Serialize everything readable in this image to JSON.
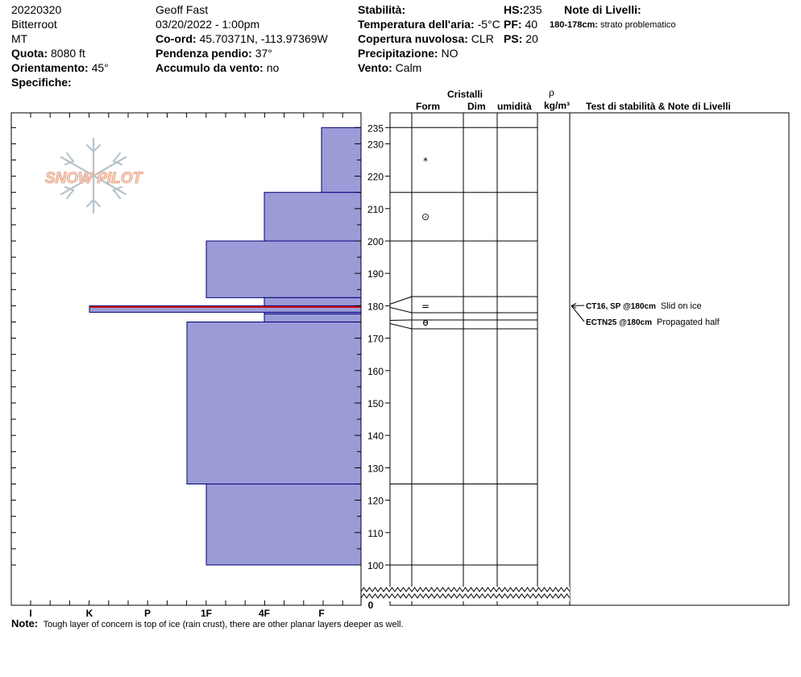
{
  "header": {
    "date": "20220320",
    "range": "Bitterroot",
    "state": "MT",
    "elevation_label": "Quota:",
    "elevation_value": "8080 ft",
    "aspect_label": "Orientamento:",
    "aspect_value": "45°",
    "specifics_label": "Specifiche:",
    "observer": "Geoff Fast",
    "datetime": "03/20/2022 - 1:00pm",
    "coords_label": "Co-ord:",
    "coords_value": "45.70371N, -113.97369W",
    "slope_label": "Pendenza pendio:",
    "slope_value": "37°",
    "wind_loading_label": "Accumulo da vento:",
    "wind_loading_value": "no",
    "stability_label": "Stabilità:",
    "air_temp_label": "Temperatura dell'aria:",
    "air_temp_value": "-5°C",
    "cloud_label": "Copertura nuvolosa:",
    "cloud_value": "CLR",
    "precip_label": "Precipitazione:",
    "precip_value": "NO",
    "wind_label": "Vento:",
    "wind_value": "Calm",
    "hs_label": "HS:",
    "hs_value": "235",
    "pf_label": "PF:",
    "pf_value": "40",
    "ps_label": "PS:",
    "ps_value": "20",
    "layer_notes_label": "Note di Livelli:",
    "layer_note_range": "180-178cm:",
    "layer_note_text": "strato problematico"
  },
  "columns": {
    "crystals": "Cristalli",
    "form": "Form",
    "dim": "Dim",
    "moisture": "umidità",
    "rho": "ρ",
    "density_unit": "kg/m³",
    "tests": "Test di stabilità & Note di Livelli"
  },
  "note": {
    "label": "Note:",
    "text": "Tough layer of concern is top of ice (rain crust), there are other planar layers deeper as well."
  },
  "logo_text": "SNOW PILOT",
  "colors": {
    "layer_fill": "#9b9bd8",
    "layer_edge": "#00007a",
    "crust_line": "#cc0000",
    "grid": "#000000"
  },
  "chart_data": {
    "type": "snow-profile",
    "hand_hardness_scale": [
      "I",
      "K",
      "P",
      "1F",
      "4F",
      "F"
    ],
    "height_ticks": [
      235,
      230,
      220,
      210,
      200,
      190,
      180,
      170,
      160,
      150,
      140,
      130,
      120,
      110,
      100
    ],
    "height_break": [
      0,
      100
    ],
    "height_range": [
      100,
      235
    ],
    "layers": [
      {
        "top": 235,
        "bottom": 215,
        "hardness": "F",
        "form_symbol": "*"
      },
      {
        "top": 215,
        "bottom": 200,
        "hardness": "4F",
        "form_symbol": "⊙"
      },
      {
        "top": 200,
        "bottom": 182.5,
        "hardness": "1F",
        "form_symbol": ""
      },
      {
        "top": 182.5,
        "bottom": 177.5,
        "hardness": "4F",
        "form_symbol": "="
      },
      {
        "top": 180,
        "bottom": 178,
        "hardness": "K",
        "form_symbol": "",
        "note": "ice crust"
      },
      {
        "top": 177.5,
        "bottom": 172.5,
        "hardness": "4F",
        "form_symbol": "ɵ"
      },
      {
        "top": 175,
        "bottom": 125,
        "hardness": "1F-",
        "form_symbol": ""
      },
      {
        "top": 125,
        "bottom": 100,
        "hardness": "1F",
        "form_symbol": ""
      }
    ],
    "stability_tests": [
      {
        "depth": 180,
        "code": "CT16, SP @180cm",
        "comment": "Slid on ice"
      },
      {
        "depth": 180,
        "code": "ECTN25 @180cm",
        "comment": "Propagated half"
      }
    ]
  }
}
